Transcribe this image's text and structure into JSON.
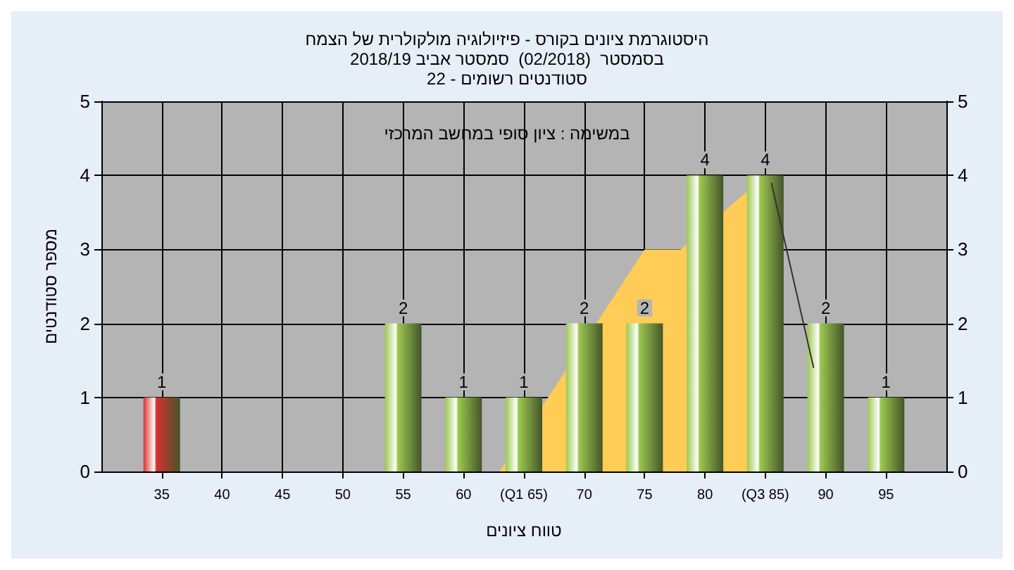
{
  "chart_data": {
    "type": "bar",
    "title": "היסטוגרמת ציונים בקורס - פיזיולוגיה מולקולרית של הצמח\nבסמסטר  (02/2018)  סמסטר אביב 2018/19\nסטודנטים רשומים - 22",
    "xlabel": "טווח ציונים",
    "ylabel": "מספר סטודנטים",
    "annotations": [
      "במשימה : ציון סופי במחשב המרכזי"
    ],
    "x": [
      35,
      40,
      45,
      50,
      55,
      60,
      65,
      70,
      75,
      80,
      85,
      90,
      95
    ],
    "series": [
      {
        "type": "area",
        "x": [
          63,
          75,
          78,
          85,
          85
        ],
        "values": [
          0,
          3,
          3,
          4,
          0
        ],
        "color": "#ffcc55"
      },
      {
        "type": "line",
        "x": [
          85.5,
          89
        ],
        "values": [
          3.9,
          1.4
        ],
        "color": "#333333"
      },
      {
        "values": [
          1,
          0,
          0,
          0,
          2,
          1,
          1,
          2,
          2,
          4,
          4,
          2,
          1
        ],
        "colors": [
          "#d93030",
          "#9cc850",
          "#9cc850",
          "#9cc850",
          "#9cc850",
          "#9cc850",
          "#9cc850",
          "#9cc850",
          "#9cc850",
          "#9cc850",
          "#9cc850",
          "#9cc850",
          "#9cc850"
        ],
        "value_labels": [
          "1",
          null,
          null,
          null,
          "2",
          "1",
          "1",
          "2",
          "2",
          "4",
          "4",
          "2",
          "1"
        ]
      }
    ],
    "xlim": [
      30,
      100
    ],
    "xticks": [
      35,
      40,
      45,
      50,
      55,
      60,
      {
        "value": 65,
        "label": "(Q1 65)"
      },
      70,
      75,
      80,
      {
        "value": 85,
        "label": "(Q3 85)"
      },
      90,
      95
    ],
    "ylim": [
      0,
      5
    ],
    "yticks": [
      0,
      1,
      2,
      3,
      4,
      5
    ],
    "y2lim": [
      0,
      5
    ],
    "y2ticks": [
      0,
      1,
      2,
      3,
      4,
      5
    ],
    "grid": true
  }
}
